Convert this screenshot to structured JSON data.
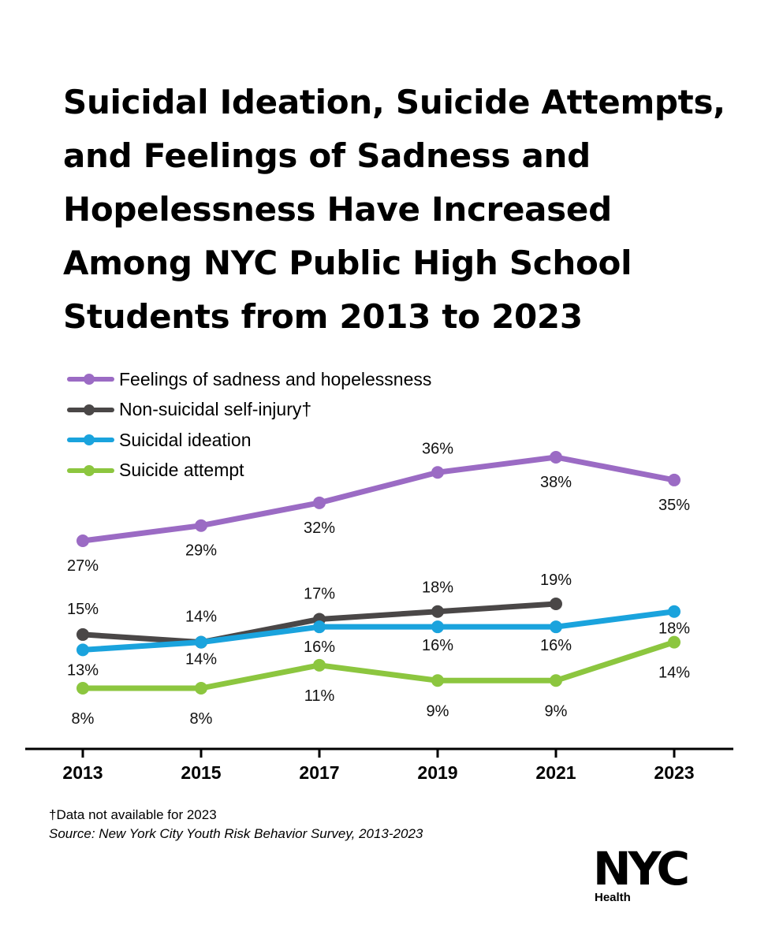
{
  "chart_data": {
    "type": "line",
    "title": "Suicidal Ideation, Suicide Attempts, and Feelings of Sadness and Hopelessness Have Increased Among NYC Public High School Students from 2013 to 2023",
    "x": [
      "2013",
      "2015",
      "2017",
      "2019",
      "2021",
      "2023"
    ],
    "ylim": [
      0,
      40
    ],
    "grid": false,
    "legend_position": "top-left",
    "series": [
      {
        "name": "Feelings of sadness and hopelessness",
        "color": "#9b6bc4",
        "values": [
          27,
          29,
          32,
          36,
          38,
          35
        ],
        "labels": [
          "27%",
          "29%",
          "32%",
          "36%",
          "38%",
          "35%"
        ]
      },
      {
        "name": "Non-suicidal self-injury†",
        "color": "#4a4747",
        "values": [
          15,
          14,
          17,
          18,
          19,
          null
        ],
        "labels": [
          "15%",
          "14%",
          "17%",
          "18%",
          "19%",
          null
        ]
      },
      {
        "name": "Suicidal ideation",
        "color": "#1aa3dd",
        "values": [
          13,
          14,
          16,
          16,
          16,
          18
        ],
        "labels": [
          "13%",
          "14%",
          "16%",
          "16%",
          "16%",
          "18%"
        ]
      },
      {
        "name": "Suicide attempt",
        "color": "#8cc63f",
        "values": [
          8,
          8,
          11,
          9,
          9,
          14
        ],
        "labels": [
          "8%",
          "8%",
          "11%",
          "9%",
          "9%",
          "14%"
        ]
      }
    ]
  },
  "footnote": "†Data not available for 2023",
  "source": "Source: New York City Youth Risk Behavior Survey, 2013-2023",
  "logo": {
    "text": "NYC",
    "sub": "Health",
    "trademark": "™"
  }
}
